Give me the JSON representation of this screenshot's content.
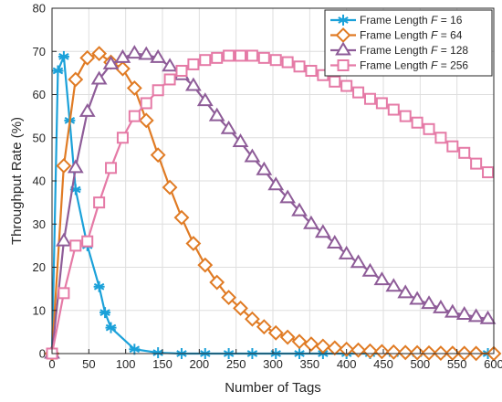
{
  "chart_data": {
    "type": "line",
    "xlabel": "Number of Tags",
    "ylabel": "Throughput Rate (%)",
    "xlim": [
      0,
      600
    ],
    "ylim": [
      0,
      80
    ],
    "xticks": [
      0,
      50,
      100,
      150,
      200,
      250,
      300,
      350,
      400,
      450,
      500,
      550,
      600
    ],
    "yticks": [
      0,
      10,
      20,
      30,
      40,
      50,
      60,
      70,
      80
    ],
    "grid": true,
    "legend_position": "top-right",
    "series": [
      {
        "name": "Frame Length F = 16",
        "legend_prefix": "Frame Length ",
        "legend_var": "F",
        "legend_value": " = 16",
        "color": "#1BA1D9",
        "marker": "asterisk",
        "x": [
          0,
          8,
          16,
          24,
          32,
          48,
          64,
          72,
          80,
          112,
          144,
          176,
          208,
          240,
          272,
          304,
          336,
          368,
          400,
          432,
          464,
          496,
          528,
          560,
          592
        ],
        "y": [
          0,
          65.5,
          68.8,
          54,
          38,
          25,
          15.5,
          9.5,
          6,
          1,
          0.2,
          0,
          0,
          0,
          0,
          0,
          0,
          0,
          0,
          0,
          0,
          0,
          0,
          0,
          0
        ]
      },
      {
        "name": "Frame Length F = 64",
        "legend_prefix": "Frame Length ",
        "legend_var": "F",
        "legend_value": " = 64",
        "color": "#E07B24",
        "marker": "diamond",
        "x": [
          0,
          16,
          32,
          48,
          64,
          80,
          96,
          112,
          128,
          144,
          160,
          176,
          192,
          208,
          224,
          240,
          256,
          272,
          288,
          304,
          320,
          336,
          352,
          368,
          384,
          400,
          416,
          432,
          448,
          464,
          480,
          496,
          512,
          528,
          544,
          560,
          576,
          600
        ],
        "y": [
          0,
          43.5,
          63.5,
          68.5,
          69.5,
          67.5,
          66,
          61.5,
          54,
          46,
          38.5,
          31.5,
          25.5,
          20.5,
          16.5,
          13,
          10.5,
          8,
          6.2,
          4.8,
          3.8,
          2.8,
          2.2,
          1.7,
          1.3,
          1,
          0.8,
          0.6,
          0.45,
          0.35,
          0.25,
          0.2,
          0.15,
          0.1,
          0.08,
          0.05,
          0.04,
          0
        ]
      },
      {
        "name": "Frame Length F = 128",
        "legend_prefix": "Frame Length ",
        "legend_var": "F",
        "legend_value": " = 128",
        "color": "#8E5C98",
        "marker": "triangle",
        "x": [
          0,
          16,
          32,
          48,
          64,
          80,
          96,
          112,
          128,
          144,
          160,
          176,
          192,
          208,
          224,
          240,
          256,
          272,
          288,
          304,
          320,
          336,
          352,
          368,
          384,
          400,
          416,
          432,
          448,
          464,
          480,
          496,
          512,
          528,
          544,
          560,
          576,
          592
        ],
        "y": [
          0,
          26,
          43,
          56,
          63.5,
          67,
          68.5,
          69.5,
          69.2,
          68.5,
          66.5,
          64.5,
          62,
          58.5,
          55,
          52,
          49,
          45.5,
          42.5,
          39,
          36,
          33,
          30,
          28,
          25.5,
          23,
          21,
          19,
          17,
          15.5,
          14,
          12.5,
          11.5,
          10.5,
          9.5,
          9,
          8.5,
          8
        ]
      },
      {
        "name": "Frame Length F = 256",
        "legend_prefix": "Frame Length ",
        "legend_var": "F",
        "legend_value": " = 256",
        "color": "#E57AA6",
        "marker": "square",
        "x": [
          0,
          16,
          32,
          48,
          64,
          80,
          96,
          112,
          128,
          144,
          160,
          176,
          192,
          208,
          224,
          240,
          256,
          272,
          288,
          304,
          320,
          336,
          352,
          368,
          384,
          400,
          416,
          432,
          448,
          464,
          480,
          496,
          512,
          528,
          544,
          560,
          576,
          592
        ],
        "y": [
          0,
          14,
          25,
          26,
          35,
          43,
          50,
          55,
          58,
          61,
          63.5,
          65.5,
          67,
          68,
          68.5,
          69,
          69,
          69,
          68.5,
          68,
          67.5,
          66.5,
          65.5,
          64.5,
          63,
          62,
          60.5,
          59,
          58,
          56.5,
          55,
          53.5,
          52,
          50,
          48,
          46.5,
          44,
          42
        ]
      }
    ]
  }
}
